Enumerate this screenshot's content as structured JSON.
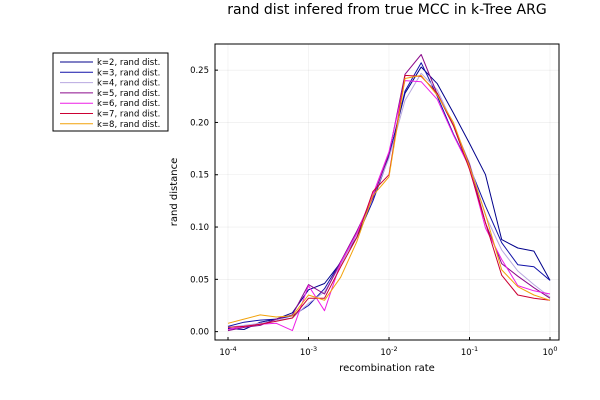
{
  "chart_data": {
    "type": "line",
    "title": "rand dist infered from true MCC in k-Tree ARG",
    "xlabel": "recombination rate",
    "ylabel": "rand distance",
    "xscale": "log10",
    "xlim": [
      0.0001,
      1
    ],
    "ylim": [
      -0.008,
      0.275
    ],
    "grid": true,
    "legend_position": "outer-top-left",
    "x_ticks": [
      {
        "base": "10",
        "exp": "-4",
        "value": 0.0001
      },
      {
        "base": "10",
        "exp": "-3",
        "value": 0.001
      },
      {
        "base": "10",
        "exp": "-2",
        "value": 0.01
      },
      {
        "base": "10",
        "exp": "-1",
        "value": 0.1
      },
      {
        "base": "10",
        "exp": "0",
        "value": 1
      }
    ],
    "y_ticks": [
      {
        "label": "0.00",
        "value": 0.0
      },
      {
        "label": "0.05",
        "value": 0.05
      },
      {
        "label": "0.10",
        "value": 0.1
      },
      {
        "label": "0.15",
        "value": 0.15
      },
      {
        "label": "0.20",
        "value": 0.2
      },
      {
        "label": "0.25",
        "value": 0.25
      }
    ],
    "x": [
      0.0001,
      0.000158,
      0.000251,
      0.000398,
      0.000631,
      0.001,
      0.00158,
      0.00251,
      0.00398,
      0.00631,
      0.01,
      0.0158,
      0.0251,
      0.0398,
      0.0631,
      0.1,
      0.158,
      0.251,
      0.398,
      0.631,
      1
    ],
    "series": [
      {
        "name": "k=2, rand dist.",
        "color": "#00008b",
        "values": [
          0.003,
          0.002,
          0.009,
          0.012,
          0.018,
          0.04,
          0.046,
          0.066,
          0.094,
          0.128,
          0.168,
          0.228,
          0.253,
          0.237,
          0.209,
          0.18,
          0.15,
          0.088,
          0.08,
          0.077,
          0.049
        ]
      },
      {
        "name": "k=3, rand dist.",
        "color": "#1010a8",
        "values": [
          0.005,
          0.009,
          0.011,
          0.012,
          0.015,
          0.025,
          0.041,
          0.067,
          0.09,
          0.125,
          0.167,
          0.23,
          0.257,
          0.225,
          0.189,
          0.158,
          0.12,
          0.085,
          0.064,
          0.062,
          0.049
        ]
      },
      {
        "name": "k=4, rand dist.",
        "color": "#b8a8e0",
        "values": [
          0.004,
          0.006,
          0.008,
          0.011,
          0.013,
          0.027,
          0.038,
          0.064,
          0.093,
          0.128,
          0.166,
          0.221,
          0.247,
          0.231,
          0.198,
          0.161,
          0.111,
          0.078,
          0.058,
          0.045,
          0.033
        ]
      },
      {
        "name": "k=5, rand dist.",
        "color": "#8b0a8b",
        "values": [
          0.001,
          0.004,
          0.006,
          0.012,
          0.016,
          0.045,
          0.036,
          0.067,
          0.096,
          0.128,
          0.17,
          0.246,
          0.265,
          0.227,
          0.197,
          0.16,
          0.104,
          0.065,
          0.053,
          0.042,
          0.032
        ]
      },
      {
        "name": "k=6, rand dist.",
        "color": "#ee1ee6",
        "values": [
          0.002,
          0.005,
          0.007,
          0.008,
          0.001,
          0.044,
          0.02,
          0.066,
          0.094,
          0.131,
          0.172,
          0.24,
          0.239,
          0.222,
          0.188,
          0.157,
          0.099,
          0.069,
          0.044,
          0.039,
          0.036
        ]
      },
      {
        "name": "k=7, rand dist.",
        "color": "#cc0033",
        "values": [
          0.004,
          0.005,
          0.007,
          0.01,
          0.013,
          0.032,
          0.032,
          0.062,
          0.09,
          0.134,
          0.15,
          0.245,
          0.244,
          0.228,
          0.197,
          0.155,
          0.104,
          0.054,
          0.035,
          0.032,
          0.03
        ]
      },
      {
        "name": "k=8, rand dist.",
        "color": "#f2a20a",
        "values": [
          0.008,
          0.012,
          0.016,
          0.014,
          0.015,
          0.035,
          0.03,
          0.052,
          0.086,
          0.13,
          0.148,
          0.242,
          0.245,
          0.226,
          0.2,
          0.158,
          0.112,
          0.059,
          0.043,
          0.035,
          0.03
        ]
      }
    ]
  }
}
